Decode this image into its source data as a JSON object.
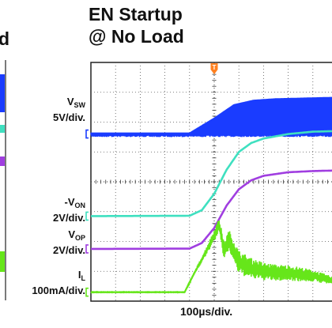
{
  "title_line1": "EN Startup",
  "title_line2": "@ No Load",
  "left_fragment": "d",
  "chart_data": {
    "type": "line",
    "title": "EN Startup @ No Load",
    "xlabel": "100µs/div.",
    "x_unit": "div",
    "xlim": [
      0,
      10
    ],
    "ylim": [
      0,
      8
    ],
    "grid": true,
    "trigger_marker": "T",
    "trigger_x": 5.0,
    "channels": [
      {
        "name": "V_SW",
        "name_main": "V",
        "name_sub": "SW",
        "prefix": "",
        "scale": "5V/div.",
        "color": "#1a3cff",
        "kind": "switching",
        "baseline": 5.6,
        "x": [
          0,
          4.0,
          5.0,
          5.8,
          6.6,
          7.5,
          10
        ],
        "env": [
          0.05,
          0.05,
          0.55,
          1.0,
          1.15,
          1.2,
          1.25
        ]
      },
      {
        "name": "-V_ON",
        "name_main": "V",
        "name_sub": "ON",
        "prefix": "-",
        "scale": "2V/div.",
        "color": "#3fe0c0",
        "kind": "smooth",
        "x": [
          0,
          4.0,
          4.5,
          5.0,
          5.5,
          6.0,
          6.5,
          7.0,
          8.0,
          9.0,
          10
        ],
        "y": [
          2.85,
          2.86,
          3.05,
          3.6,
          4.4,
          5.0,
          5.3,
          5.45,
          5.6,
          5.68,
          5.7
        ]
      },
      {
        "name": "V_OP",
        "name_main": "V",
        "name_sub": "OP",
        "prefix": "",
        "scale": "2V/div.",
        "color": "#a03ee0",
        "kind": "smooth",
        "x": [
          0,
          4.0,
          4.5,
          5.0,
          5.5,
          6.0,
          6.5,
          7.0,
          8.0,
          9.0,
          10
        ],
        "y": [
          1.75,
          1.76,
          1.95,
          2.45,
          3.2,
          3.75,
          4.05,
          4.2,
          4.32,
          4.36,
          4.38
        ]
      },
      {
        "name": "I_L",
        "name_main": "I",
        "name_sub": "L",
        "prefix": "",
        "scale": "100mA/div.",
        "color": "#66e61a",
        "kind": "current",
        "x": [
          0,
          3.8,
          4.2,
          4.6,
          5.0,
          5.2,
          5.4,
          5.6,
          6.0,
          6.5,
          7.0,
          7.5,
          8.0,
          8.5,
          9.0,
          9.5,
          10
        ],
        "y": [
          0.3,
          0.3,
          0.95,
          1.55,
          2.2,
          2.55,
          1.7,
          2.05,
          1.3,
          1.1,
          1.0,
          0.95,
          0.95,
          0.9,
          0.85,
          0.75,
          0.65
        ],
        "env": [
          0.01,
          0.01,
          0.05,
          0.12,
          0.2,
          0.25,
          0.3,
          0.35,
          0.4,
          0.35,
          0.3,
          0.28,
          0.26,
          0.24,
          0.2,
          0.16,
          0.12
        ]
      }
    ]
  }
}
